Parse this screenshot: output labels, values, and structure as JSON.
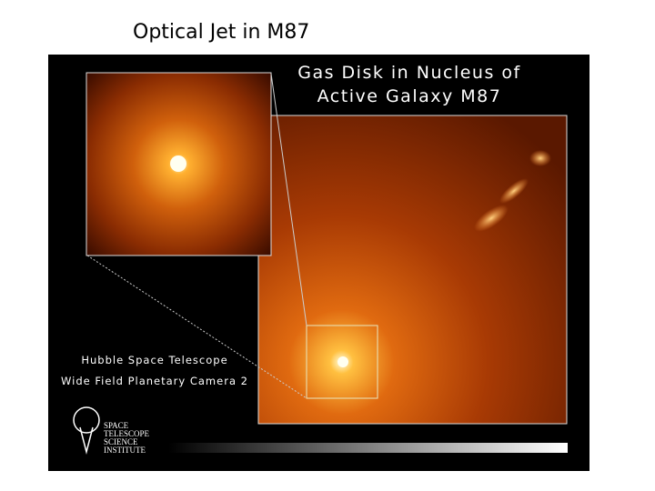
{
  "header": {
    "title": "Optical Jet in M87"
  },
  "image": {
    "caption": [
      "Gas Disk in Nucleus of",
      "Active Galaxy M87"
    ],
    "credit": [
      "Hubble Space Telescope",
      "Wide Field Planetary Camera 2"
    ],
    "logo": [
      "SPACE",
      "TELESCOPE",
      "SCIENCE",
      "INSTITUTE"
    ]
  }
}
